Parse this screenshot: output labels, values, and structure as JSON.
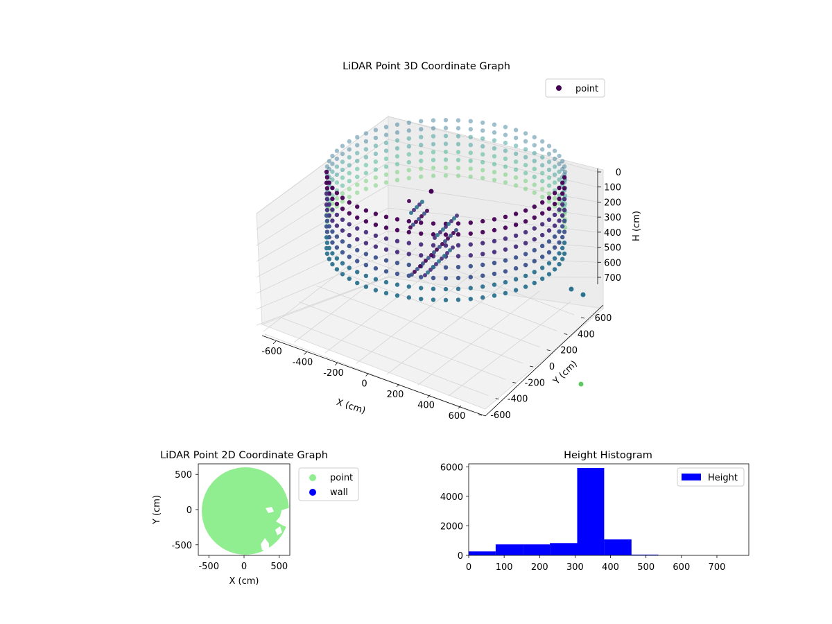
{
  "chart_data": [
    {
      "type": "scatter",
      "chart": "3d",
      "title": "LiDAR Point 3D Coordinate Graph",
      "xlabel": "X (cm)",
      "ylabel": "Y (cm)",
      "zlabel": "H (cm)",
      "x_ticks": [
        -600,
        -400,
        -200,
        0,
        200,
        400,
        600
      ],
      "y_ticks": [
        -600,
        -400,
        -200,
        0,
        200,
        400,
        600
      ],
      "z_ticks": [
        0,
        100,
        200,
        300,
        400,
        500,
        600,
        700
      ],
      "xlim": [
        -650,
        650
      ],
      "ylim": [
        -650,
        650
      ],
      "zlim": [
        0,
        780
      ],
      "z_inverted": true,
      "legend": {
        "entries": [
          "point"
        ],
        "placement": "top-right"
      },
      "colormap": "viridis",
      "description_of_points": "cylindrical ring of wall points, radius about 600 cm, height 0-500 cm"
    },
    {
      "type": "scatter",
      "title": "LiDAR Point 2D Coordinate Graph",
      "xlabel": "X (cm)",
      "ylabel": "Y (cm)",
      "x_ticks": [
        -500,
        0,
        500
      ],
      "y_ticks": [
        -500,
        0,
        500
      ],
      "xlim": [
        -650,
        650
      ],
      "ylim": [
        -650,
        650
      ],
      "series": [
        {
          "name": "point",
          "color": "#90ee90"
        },
        {
          "name": "wall",
          "color": "#0000ff"
        }
      ],
      "legend": {
        "entries": [
          "point",
          "wall"
        ],
        "placement": "outside-right"
      }
    },
    {
      "type": "bar",
      "chart": "histogram",
      "title": "Height Histogram",
      "x_ticks": [
        0,
        100,
        200,
        300,
        400,
        500,
        600,
        700
      ],
      "y_ticks": [
        0,
        2000,
        4000,
        6000
      ],
      "xlim": [
        0,
        790
      ],
      "ylim": [
        0,
        6200
      ],
      "bin_edges": [
        0,
        76,
        153,
        229,
        306,
        382,
        459,
        535,
        612,
        688,
        765
      ],
      "values": [
        270,
        740,
        740,
        830,
        5920,
        1080,
        50,
        5,
        0,
        0
      ],
      "series": [
        {
          "name": "Height",
          "color": "#0000ff"
        }
      ],
      "legend": {
        "entries": [
          "Height"
        ],
        "placement": "top-right"
      }
    }
  ]
}
